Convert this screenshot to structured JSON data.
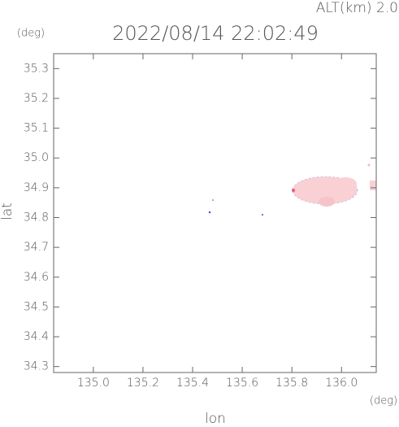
{
  "chart_data": {
    "type": "map",
    "title": "2022/08/14 22:02:49",
    "subtitle": "ALT(km) 2.0",
    "x_label": "lon",
    "y_label": "lat",
    "x_unit": "(deg)",
    "y_unit": "(deg)",
    "xlim": [
      134.84,
      136.14
    ],
    "ylim": [
      34.28,
      35.35
    ],
    "xticks": [
      {
        "value": 135.0,
        "label": "135.0"
      },
      135.2,
      135.4,
      135.6,
      135.8,
      {
        "value": 136.0,
        "label": "136.0"
      }
    ],
    "yticks": [
      34.3,
      34.4,
      34.5,
      34.6,
      34.7,
      34.8,
      34.9,
      {
        "value": 35.0,
        "label": "35.0"
      },
      35.1,
      35.2,
      35.3
    ]
  }
}
